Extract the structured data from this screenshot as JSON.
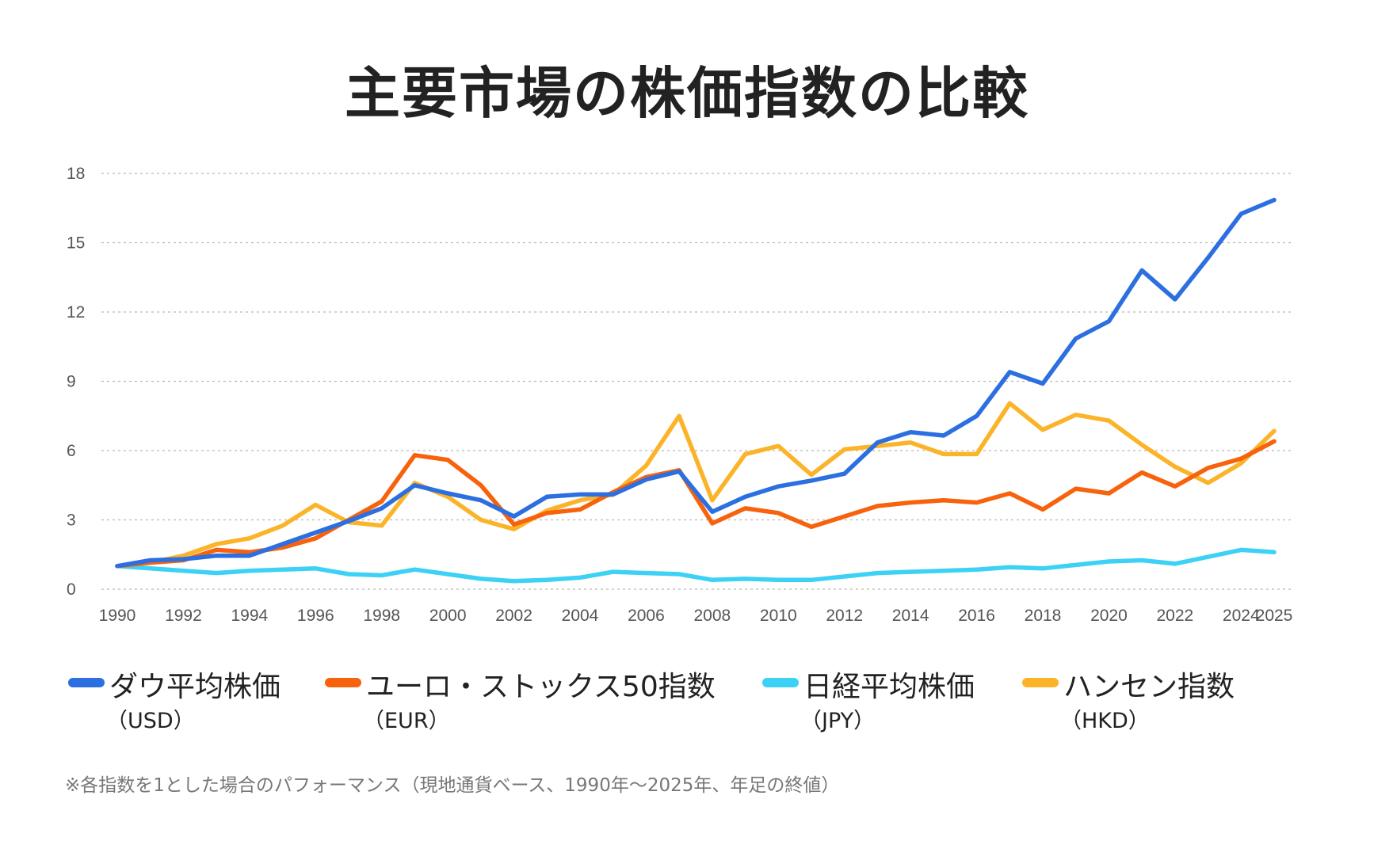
{
  "chart_data": {
    "type": "line",
    "title": "主要市場の株価指数の比較",
    "ylim": [
      0,
      18
    ],
    "yticks": [
      0,
      3,
      6,
      9,
      12,
      15,
      18
    ],
    "xticks": [
      1990,
      1992,
      1994,
      1996,
      1998,
      2000,
      2002,
      2004,
      2006,
      2008,
      2010,
      2012,
      2014,
      2016,
      2018,
      2020,
      2022,
      2024,
      2025
    ],
    "grid": true,
    "legend_position": "bottom",
    "x": [
      1990,
      1991,
      1992,
      1993,
      1994,
      1995,
      1996,
      1997,
      1998,
      1999,
      2000,
      2001,
      2002,
      2003,
      2004,
      2005,
      2006,
      2007,
      2008,
      2009,
      2010,
      2011,
      2012,
      2013,
      2014,
      2015,
      2016,
      2017,
      2018,
      2019,
      2020,
      2021,
      2022,
      2023,
      2024,
      2025
    ],
    "series": [
      {
        "name": "ダウ平均株価",
        "currency": "（USD）",
        "color": "#2b6fe0",
        "values": [
          1.0,
          1.25,
          1.3,
          1.45,
          1.45,
          1.95,
          2.45,
          2.95,
          3.5,
          4.5,
          4.15,
          3.85,
          3.15,
          4.0,
          4.1,
          4.1,
          4.75,
          5.1,
          3.35,
          4.0,
          4.45,
          4.7,
          5.0,
          6.35,
          6.8,
          6.65,
          7.5,
          9.4,
          8.9,
          10.85,
          11.6,
          13.8,
          12.55,
          14.35,
          16.25,
          16.85
        ]
      },
      {
        "name": "ユーロ・ストックス50指数",
        "currency": "（EUR）",
        "color": "#f7620c",
        "values": [
          1.0,
          1.15,
          1.25,
          1.7,
          1.6,
          1.8,
          2.2,
          3.0,
          3.8,
          5.8,
          5.6,
          4.5,
          2.8,
          3.3,
          3.45,
          4.2,
          4.85,
          5.15,
          2.85,
          3.5,
          3.3,
          2.7,
          3.15,
          3.6,
          3.75,
          3.85,
          3.75,
          4.15,
          3.45,
          4.35,
          4.15,
          5.05,
          4.45,
          5.25,
          5.65,
          6.4
        ]
      },
      {
        "name": "日経平均株価",
        "currency": "（JPY）",
        "color": "#3cd1f5",
        "values": [
          1.0,
          0.9,
          0.8,
          0.7,
          0.8,
          0.85,
          0.9,
          0.65,
          0.6,
          0.85,
          0.65,
          0.45,
          0.35,
          0.4,
          0.5,
          0.75,
          0.7,
          0.65,
          0.4,
          0.45,
          0.4,
          0.4,
          0.55,
          0.7,
          0.75,
          0.8,
          0.85,
          0.95,
          0.9,
          1.05,
          1.2,
          1.25,
          1.1,
          1.4,
          1.7,
          1.6
        ]
      },
      {
        "name": "ハンセン指数",
        "currency": "（HKD）",
        "color": "#fbb42a",
        "values": [
          1.0,
          1.15,
          1.45,
          1.95,
          2.2,
          2.75,
          3.65,
          2.9,
          2.75,
          4.6,
          4.0,
          3.0,
          2.6,
          3.4,
          3.85,
          4.1,
          5.35,
          7.5,
          3.85,
          5.85,
          6.2,
          4.95,
          6.05,
          6.2,
          6.35,
          5.85,
          5.85,
          8.05,
          6.9,
          7.55,
          7.3,
          6.25,
          5.3,
          4.6,
          5.45,
          6.85
        ]
      }
    ]
  },
  "note": "※各指数を1とした場合のパフォーマンス（現地通貨ベース、1990年〜2025年、年足の終値）"
}
